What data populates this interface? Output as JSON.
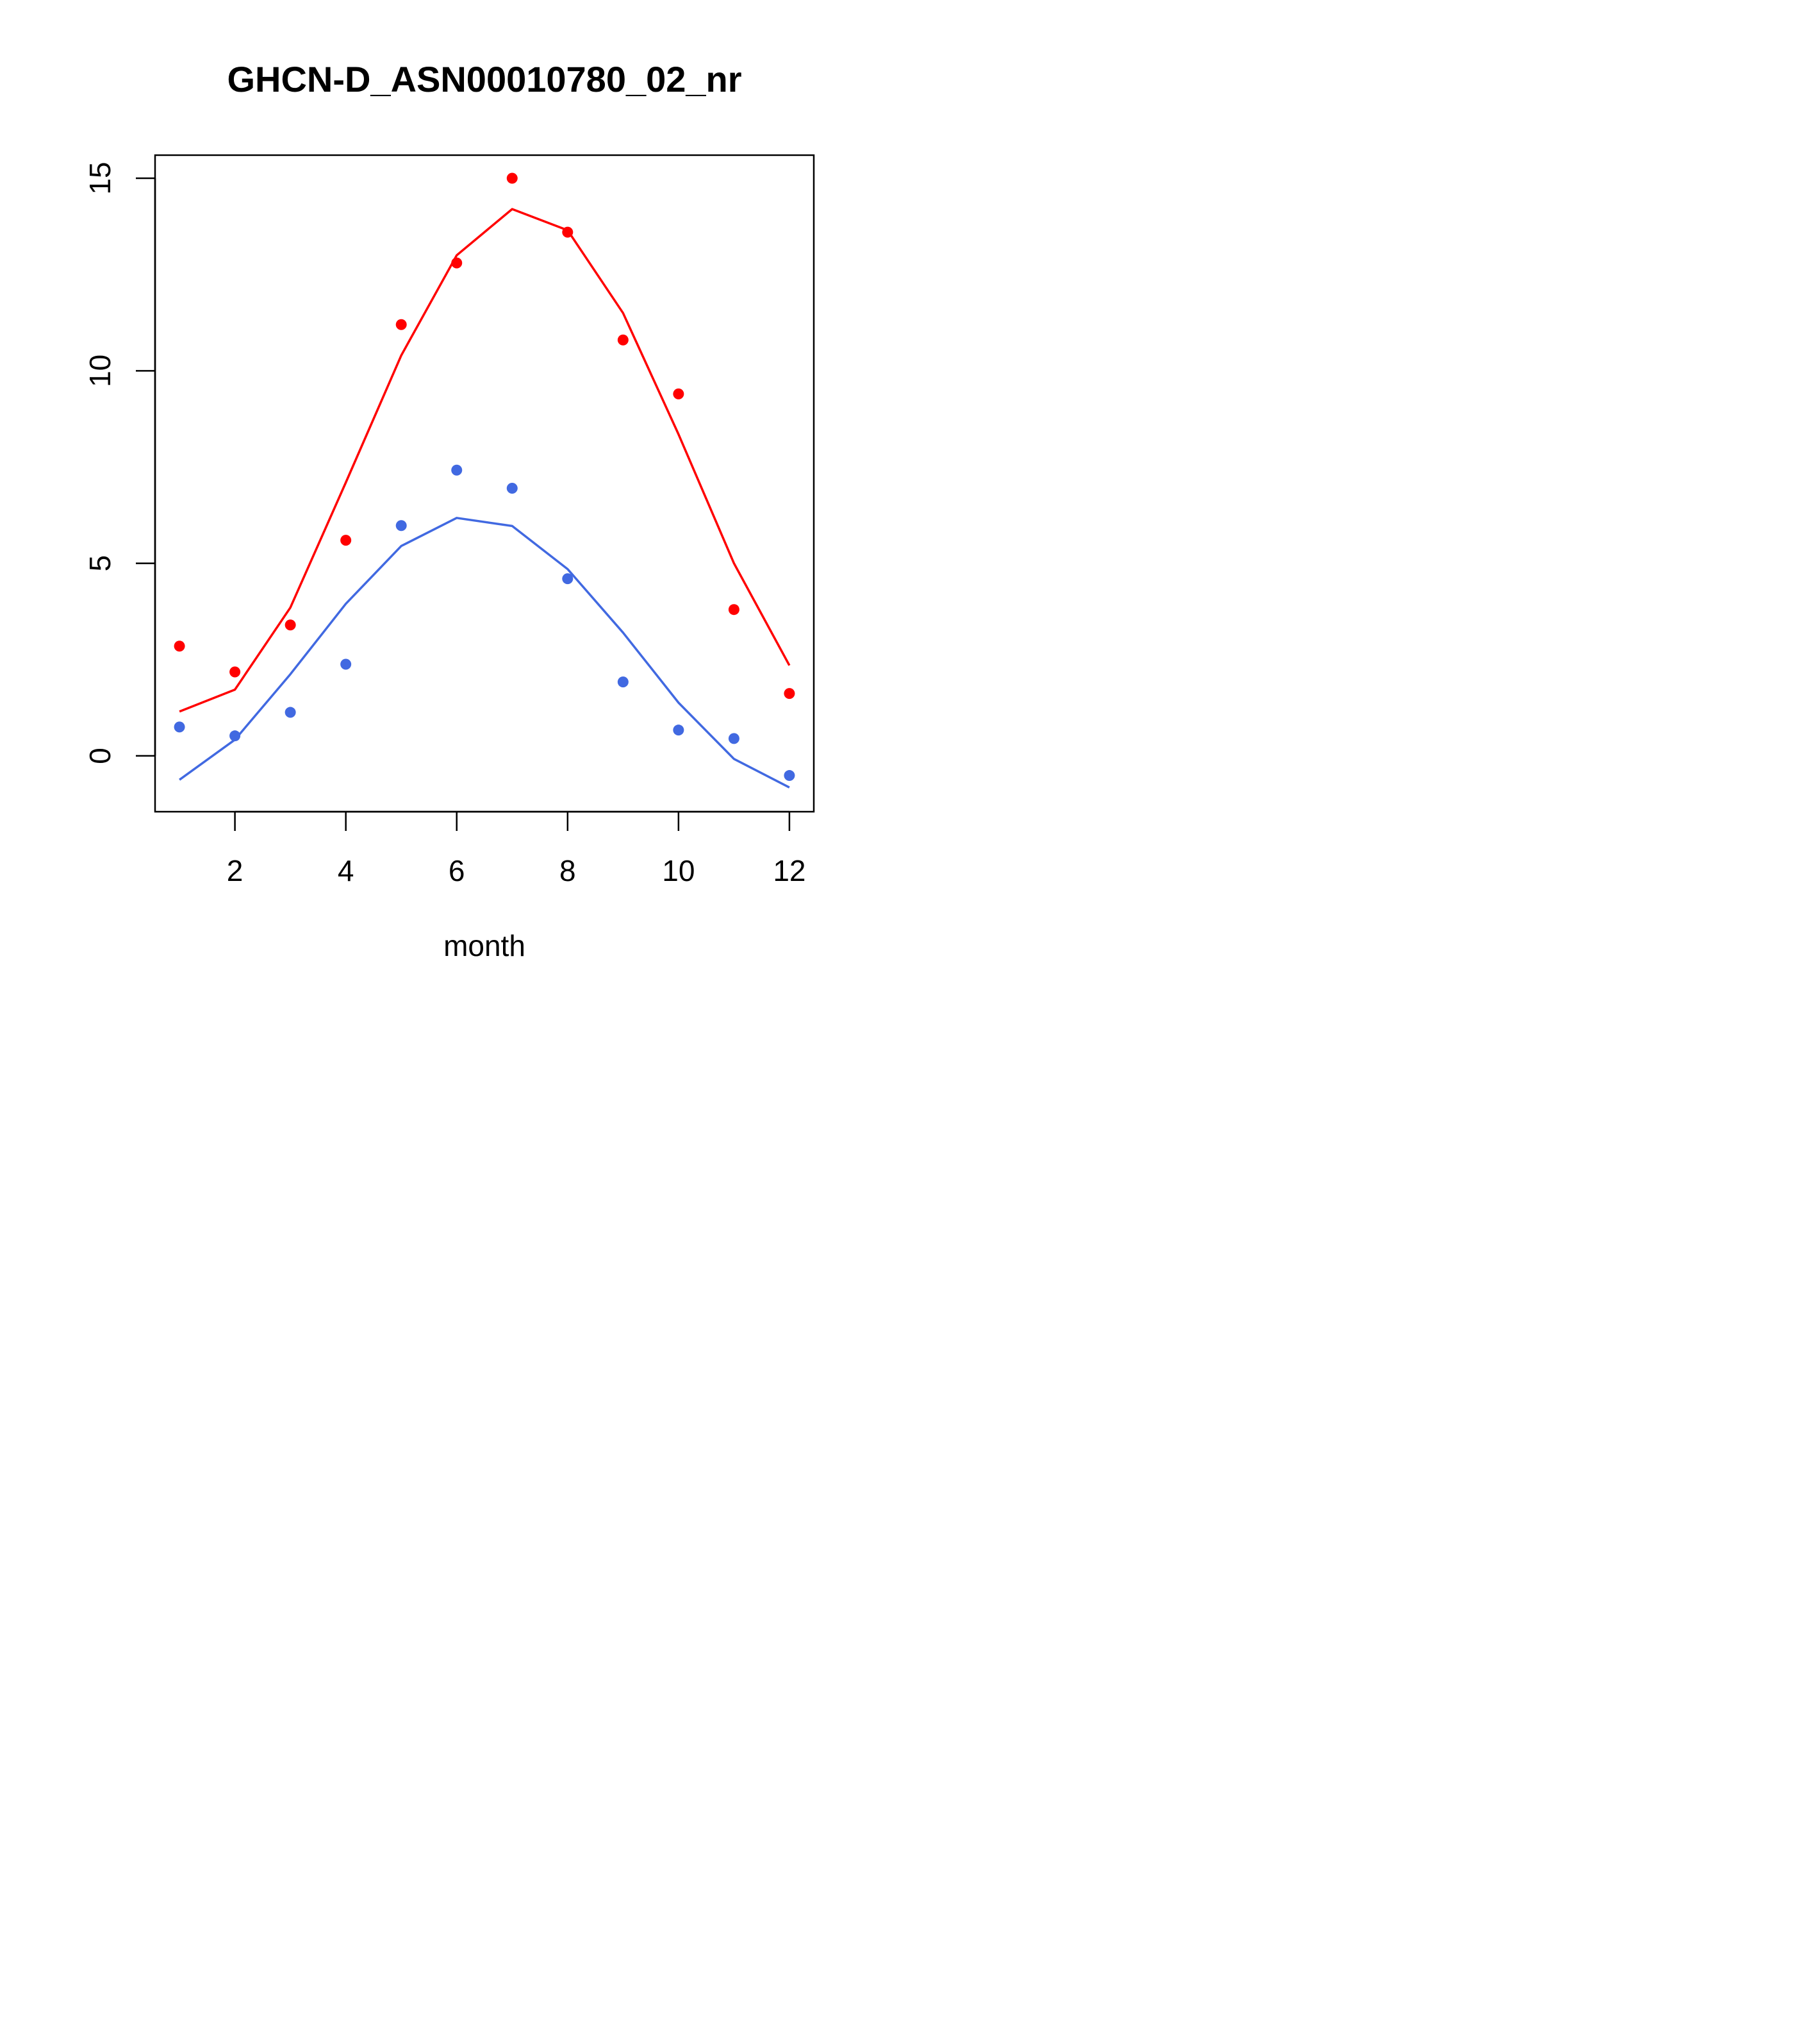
{
  "chart_data": {
    "type": "line",
    "title": "GHCN-D_ASN00010780_02_nr",
    "xlabel": "month",
    "ylabel": "",
    "x": [
      1,
      2,
      3,
      4,
      5,
      6,
      7,
      8,
      9,
      10,
      11,
      12
    ],
    "xlim": [
      0.56,
      12.44
    ],
    "ylim": [
      -1.45,
      15.6
    ],
    "xticks": [
      2,
      4,
      6,
      8,
      10,
      12
    ],
    "yticks": [
      0,
      5,
      10,
      15
    ],
    "grid": false,
    "series": [
      {
        "color": "#ff0000",
        "points": [
          2.85,
          2.18,
          3.4,
          5.6,
          11.2,
          12.8,
          15.0,
          13.6,
          10.8,
          9.4,
          3.8,
          1.62
        ],
        "line": [
          1.15,
          1.72,
          3.85,
          7.1,
          10.4,
          13.0,
          14.2,
          13.65,
          11.5,
          8.35,
          5.0,
          2.35
        ]
      },
      {
        "color": "#4169e1",
        "points": [
          0.75,
          0.52,
          1.13,
          2.38,
          5.98,
          7.42,
          6.95,
          4.6,
          1.92,
          0.67,
          0.45,
          -0.51
        ],
        "line": [
          -0.62,
          0.42,
          2.12,
          3.95,
          5.45,
          6.18,
          5.97,
          4.85,
          3.2,
          1.38,
          -0.08,
          -0.82
        ]
      }
    ]
  }
}
